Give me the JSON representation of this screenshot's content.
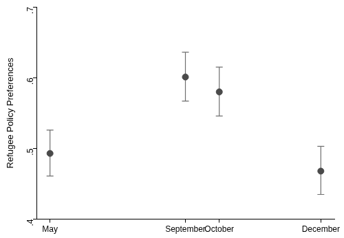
{
  "chart_data": {
    "type": "scatter",
    "y_label": "Refugee Policy Preferences",
    "x": [
      5,
      9,
      10,
      13
    ],
    "values": [
      0.493,
      0.601,
      0.58,
      0.468
    ],
    "ci_low": [
      0.461,
      0.567,
      0.546,
      0.435
    ],
    "ci_high": [
      0.526,
      0.636,
      0.615,
      0.503
    ],
    "color": "#4a4a4a",
    "marker": "circle",
    "xlim": [
      4.6,
      13.4
    ],
    "xticks": [
      {
        "value": 5,
        "label": "May"
      },
      {
        "value": 9,
        "label": "September"
      },
      {
        "value": 10,
        "label": "October"
      },
      {
        "value": 13,
        "label": "December"
      }
    ],
    "ylim": [
      0.4,
      0.7
    ],
    "yticks": [
      {
        "value": 0.4,
        "label": ".4"
      },
      {
        "value": 0.5,
        "label": ".5"
      },
      {
        "value": 0.6,
        "label": ".6"
      },
      {
        "value": 0.7,
        "label": ".7"
      }
    ],
    "grid": false
  }
}
